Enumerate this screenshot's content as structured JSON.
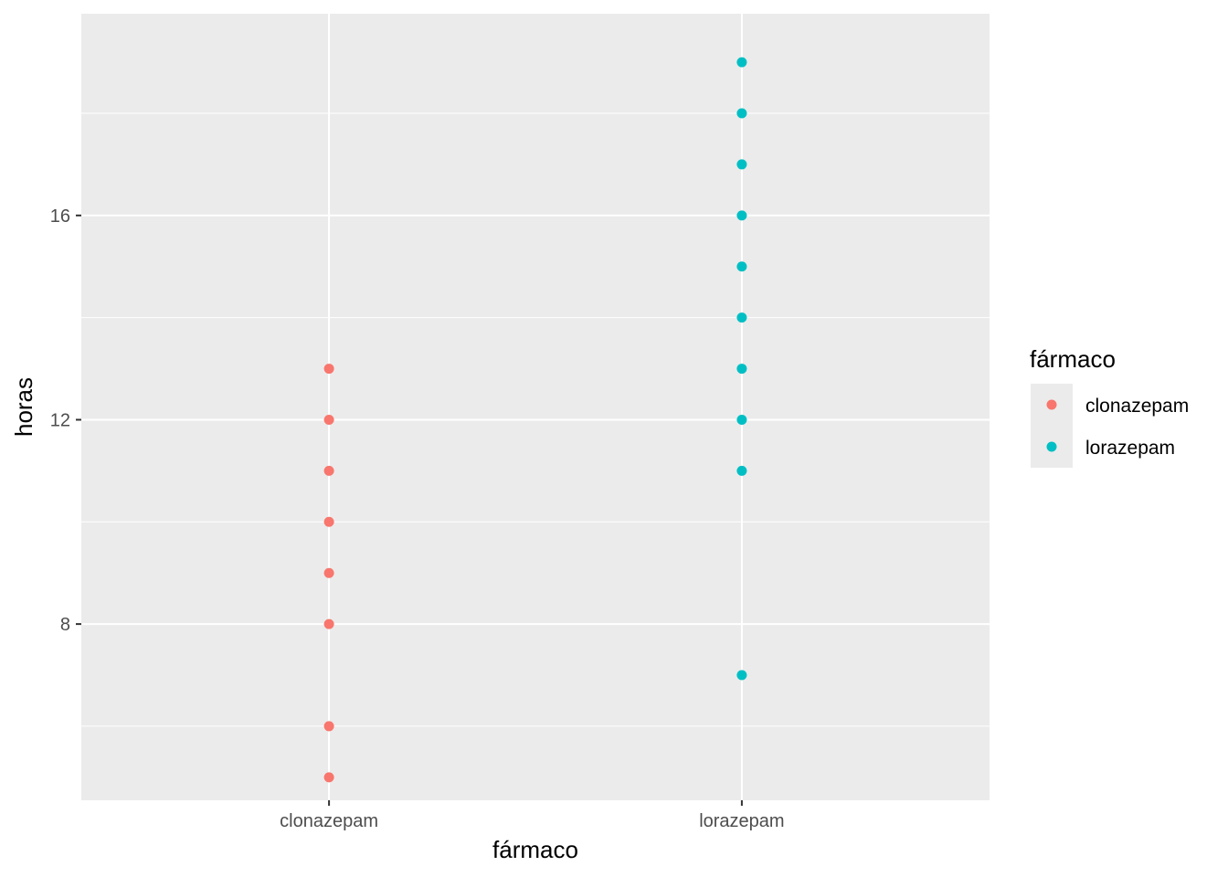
{
  "chart_data": {
    "type": "scatter",
    "xlabel": "fármaco",
    "ylabel": "horas",
    "categories": [
      "clonazepam",
      "lorazepam"
    ],
    "ylim": [
      4.55,
      19.95
    ],
    "yticks": [
      8,
      12,
      16
    ],
    "ygrid_minor": [
      6,
      10,
      14,
      18
    ],
    "grid": true,
    "legend": {
      "title": "fármaco",
      "position": "right",
      "entries": [
        {
          "label": "clonazepam",
          "color": "#F8766D"
        },
        {
          "label": "lorazepam",
          "color": "#00BFC4"
        }
      ]
    },
    "series": [
      {
        "name": "clonazepam",
        "color": "#F8766D",
        "x": "clonazepam",
        "values": [
          5,
          6,
          8,
          9,
          10,
          11,
          12,
          13
        ]
      },
      {
        "name": "lorazepam",
        "color": "#00BFC4",
        "x": "lorazepam",
        "values": [
          7,
          11,
          12,
          13,
          14,
          15,
          16,
          17,
          18,
          19
        ]
      }
    ]
  }
}
